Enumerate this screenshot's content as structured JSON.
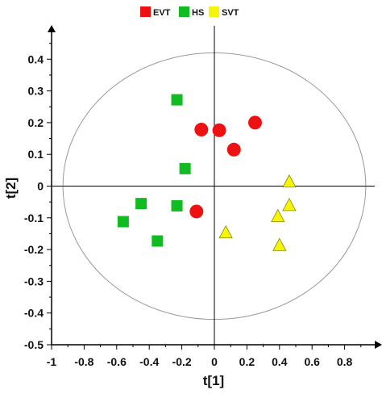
{
  "chart_data": {
    "type": "scatter",
    "xlabel": "t[1]",
    "ylabel": "t[2]",
    "xlim": [
      -1,
      1
    ],
    "ylim": [
      -0.5,
      0.5
    ],
    "x_ticks": [
      "-1",
      "-0.8",
      "-0.6",
      "-0.4",
      "-0.2",
      "0",
      "0.2",
      "0.4",
      "0.6",
      "0.8"
    ],
    "y_ticks": [
      "0.4",
      "0.3",
      "0.2",
      "0.1",
      "0",
      "-0.1",
      "-0.2",
      "-0.3",
      "-0.4",
      "-0.5"
    ],
    "legend_position": "top-center",
    "confidence_ellipse": {
      "rx": 0.93,
      "ry": 0.42
    },
    "series": [
      {
        "name": "EVT",
        "marker": "circle",
        "color": "#ee1111",
        "points": [
          [
            -0.08,
            0.178
          ],
          [
            0.03,
            0.176
          ],
          [
            0.25,
            0.2
          ],
          [
            0.12,
            0.115
          ],
          [
            -0.11,
            -0.08
          ]
        ]
      },
      {
        "name": "HS",
        "marker": "square",
        "color": "#11bb22",
        "points": [
          [
            -0.23,
            0.272
          ],
          [
            -0.18,
            0.055
          ],
          [
            -0.45,
            -0.055
          ],
          [
            -0.23,
            -0.062
          ],
          [
            -0.56,
            -0.112
          ],
          [
            -0.35,
            -0.173
          ]
        ]
      },
      {
        "name": "SVT",
        "marker": "triangle",
        "color": "#f5f50a",
        "points": [
          [
            0.46,
            0.012
          ],
          [
            0.46,
            -0.062
          ],
          [
            0.39,
            -0.097
          ],
          [
            0.07,
            -0.148
          ],
          [
            0.4,
            -0.188
          ]
        ]
      }
    ]
  }
}
